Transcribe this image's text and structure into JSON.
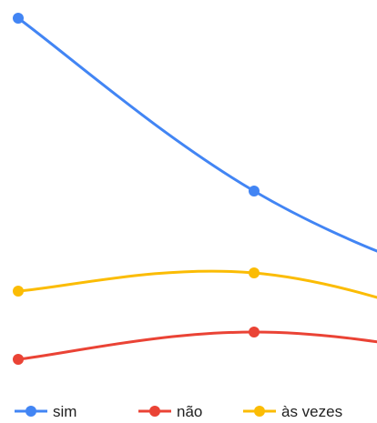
{
  "chart_data": {
    "type": "line",
    "categories": [
      "",
      "",
      ""
    ],
    "smooth": true,
    "ylim": [
      0,
      100
    ],
    "grid": false,
    "legend": "bottom-left",
    "series": [
      {
        "name": "sim",
        "color": "#4285f4",
        "values": [
          96,
          58,
          35
        ]
      },
      {
        "name": "não",
        "color": "#ea4335",
        "values": [
          21,
          27,
          21
        ]
      },
      {
        "name": "às vezes",
        "color": "#fbbc04",
        "values": [
          36,
          40,
          27
        ]
      }
    ]
  }
}
